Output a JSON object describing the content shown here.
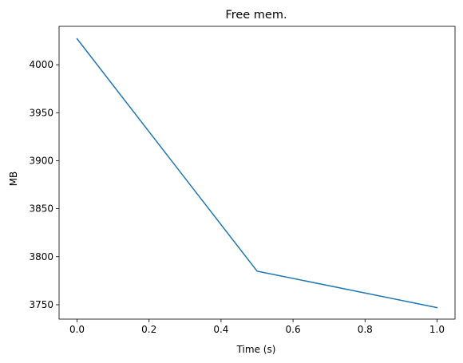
{
  "chart_data": {
    "type": "line",
    "title": "Free mem.",
    "xlabel": "Time (s)",
    "ylabel": "MB",
    "x": [
      0.0,
      0.5,
      1.0
    ],
    "series": [
      {
        "values": [
          4027,
          3785,
          3747
        ],
        "color": "#1f77b4"
      }
    ],
    "xlim": [
      -0.05,
      1.05
    ],
    "ylim": [
      3735,
      4040
    ],
    "xticks": [
      0.0,
      0.2,
      0.4,
      0.6,
      0.8,
      1.0
    ],
    "xtick_labels": [
      "0.0",
      "0.2",
      "0.4",
      "0.6",
      "0.8",
      "1.0"
    ],
    "yticks": [
      3750,
      3800,
      3850,
      3900,
      3950,
      4000
    ],
    "ytick_labels": [
      "3750",
      "3800",
      "3850",
      "3900",
      "3950",
      "4000"
    ],
    "grid": false,
    "legend": "none"
  }
}
